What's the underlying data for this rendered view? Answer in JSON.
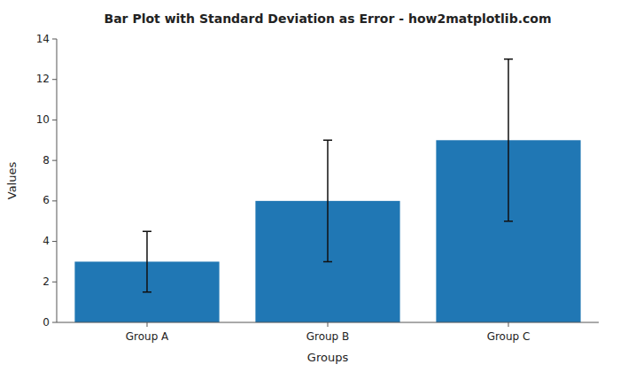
{
  "chart_data": {
    "type": "bar",
    "title": "Bar Plot with Standard Deviation as Error - how2matplotlib.com",
    "xlabel": "Groups",
    "ylabel": "Values",
    "categories": [
      "Group A",
      "Group B",
      "Group C"
    ],
    "values": [
      3,
      6,
      9
    ],
    "errors": [
      1.5,
      3,
      4
    ],
    "color": "#2077b4",
    "ylim": [
      0,
      14
    ],
    "yticks": [
      0,
      2,
      4,
      6,
      8,
      10,
      12,
      14
    ],
    "grid": false
  }
}
